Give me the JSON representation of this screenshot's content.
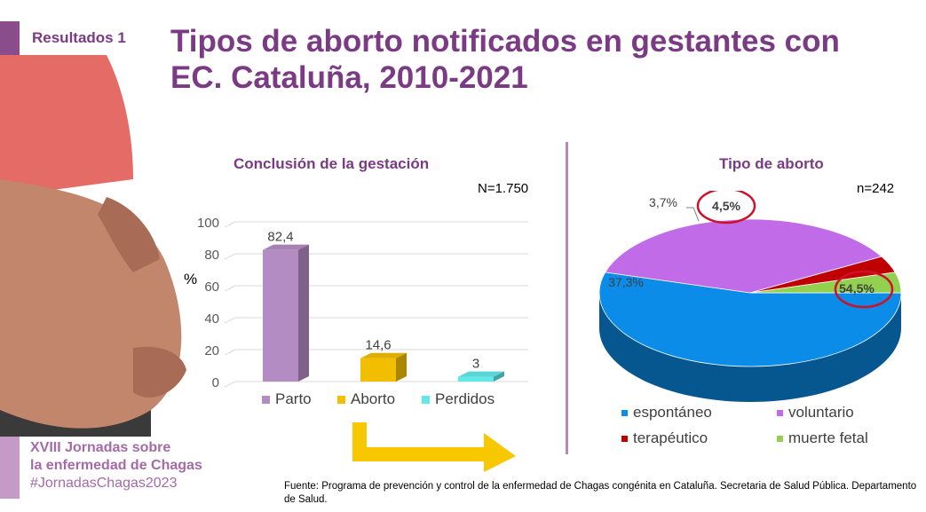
{
  "header": {
    "section_label": "Resultados 1",
    "title": "Tipos de aborto notificados en gestantes con EC. Cataluña, 2010-2021"
  },
  "event": {
    "line1": "XVIII Jornadas sobre",
    "line2": "la enfermedad de Chagas",
    "hashtag": "#JornadasChagas2023"
  },
  "footer": {
    "source": "Fuente: Programa de prevención y control de la enfermedad de Chagas congénita en Cataluña. Secretaria de Salud Pública. Departamento de Salud."
  },
  "colors": {
    "brand_purple": "#7a3a84",
    "light_purple": "#c59ac6"
  },
  "chart_data": [
    {
      "type": "bar",
      "title": "Conclusión de la gestación",
      "note": "N=1.750",
      "ylabel": "%",
      "ylim": [
        0,
        100
      ],
      "yticks": [
        0,
        20,
        40,
        60,
        80,
        100
      ],
      "categories": [
        "Parto",
        "Aborto",
        "Perdidos"
      ],
      "values": [
        82.4,
        14.6,
        3
      ],
      "value_labels": [
        "82,4",
        "14,6",
        "3"
      ],
      "colors": [
        "#b48cc4",
        "#f2be00",
        "#61e8e8"
      ],
      "legend": "bottom",
      "grid": true
    },
    {
      "type": "pie",
      "title": "Tipo de aborto",
      "note": "n=242",
      "categories": [
        "espontáneo",
        "voluntario",
        "terapéutico",
        "muerte fetal"
      ],
      "values": [
        54.5,
        37.3,
        3.7,
        4.5
      ],
      "value_labels": [
        "54,5%",
        "37,3%",
        "3,7%",
        "4,5%"
      ],
      "colors": [
        "#0a8ce8",
        "#c16be8",
        "#c00000",
        "#92d050"
      ],
      "highlighted": [
        "espontáneo",
        "muerte fetal"
      ],
      "legend": "bottom"
    }
  ]
}
